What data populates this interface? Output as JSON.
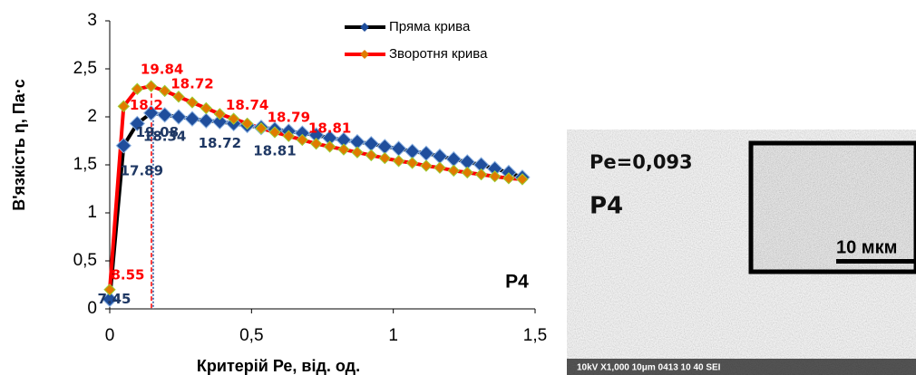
{
  "chart_data": {
    "type": "line",
    "x_label": "Критерій Ре, від. од.",
    "y_label": "В'язкість η, Па·с",
    "annotation": "P4",
    "x": [
      0,
      0.049,
      0.097,
      0.146,
      0.194,
      0.243,
      0.291,
      0.34,
      0.388,
      0.437,
      0.485,
      0.534,
      0.582,
      0.631,
      0.679,
      0.728,
      0.776,
      0.825,
      0.873,
      0.922,
      0.97,
      1.019,
      1.067,
      1.116,
      1.164,
      1.213,
      1.261,
      1.31,
      1.358,
      1.407,
      1.455
    ],
    "series": [
      {
        "name": "Пряма крива",
        "color": "#000000",
        "marker_color": "#1f4e9c",
        "values": [
          0.1,
          1.7,
          1.93,
          2.04,
          2.02,
          2.0,
          1.98,
          1.96,
          1.95,
          1.93,
          1.91,
          1.89,
          1.87,
          1.85,
          1.83,
          1.81,
          1.78,
          1.76,
          1.74,
          1.72,
          1.69,
          1.67,
          1.64,
          1.62,
          1.59,
          1.56,
          1.53,
          1.5,
          1.46,
          1.42,
          1.37
        ],
        "point_labels": [
          "7.45",
          "17.89",
          "19.08",
          null,
          "18.34",
          null,
          null,
          null,
          "18.72",
          null,
          null,
          null,
          "18.81",
          null,
          null,
          null,
          null,
          null,
          null,
          null,
          null,
          null,
          null,
          null,
          null,
          null,
          null,
          null,
          null,
          null,
          null
        ]
      },
      {
        "name": "Зворотня крива",
        "color": "#ff0000",
        "marker_color": "#e07b00",
        "values": [
          0.2,
          2.11,
          2.29,
          2.32,
          2.27,
          2.21,
          2.15,
          2.09,
          2.03,
          1.98,
          1.93,
          1.88,
          1.84,
          1.8,
          1.76,
          1.72,
          1.69,
          1.66,
          1.63,
          1.6,
          1.57,
          1.54,
          1.52,
          1.49,
          1.47,
          1.44,
          1.42,
          1.4,
          1.38,
          1.36,
          1.35
        ],
        "point_labels": [
          "8.55",
          null,
          "18.2",
          "19.84",
          null,
          null,
          "18.72",
          null,
          null,
          null,
          "18.74",
          null,
          null,
          "18.79",
          null,
          null,
          "18.81",
          null,
          null,
          null,
          null,
          null,
          null,
          null,
          null,
          null,
          null,
          null,
          null,
          null,
          null
        ]
      }
    ],
    "vline_x": 0.147,
    "xlim": [
      0,
      1.5
    ],
    "xticks": [
      0,
      {
        "value": 0.5,
        "label": "0,5"
      },
      1,
      {
        "value": 1.5,
        "label": "1,5"
      }
    ],
    "ylim": [
      0,
      3
    ],
    "yticks": [
      0,
      {
        "value": 0.5,
        "label": "0,5"
      },
      1,
      {
        "value": 1.5,
        "label": "1,5"
      },
      2,
      {
        "value": 2.5,
        "label": "2,5"
      },
      3
    ],
    "legend": "top-right"
  },
  "micrograph": {
    "label": "Pe=0,093",
    "sample": "P4",
    "scale": "10 мкм",
    "footer": "10kV   X1,000   10μm   0413   10 40 SEI"
  }
}
